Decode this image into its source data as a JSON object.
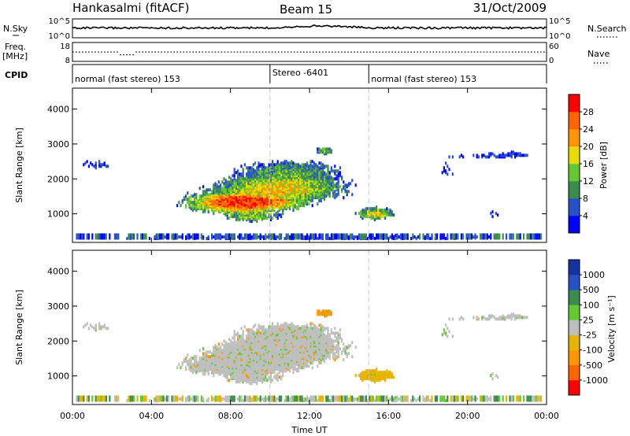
{
  "header": {
    "station": "Hankasalmi (fitACF)",
    "beam": "Beam 15",
    "date": "31/Oct/2009"
  },
  "panel_labels": {
    "nsky": "N.Sky",
    "freq_line1": "Freq.",
    "freq_line2": "[MHz]",
    "cpid": "CPID",
    "nsearch": "N.Search",
    "nave": "Nave"
  },
  "strip_ticks": {
    "nsky_top": "10^5",
    "nsky_bottom": "10^0",
    "nsearch_top": "10^5",
    "nsearch_bottom": "10^0",
    "freq_top": "18",
    "freq_bottom": "8",
    "nave_top": "60",
    "nave_bottom": "0"
  },
  "cpid_segments": [
    {
      "label": "normal (fast stereo) 153",
      "start": 0,
      "end": 10
    },
    {
      "label": "Stereo -6401",
      "start": 10,
      "end": 15
    },
    {
      "label": "normal (fast stereo) 153",
      "start": 15,
      "end": 24
    }
  ],
  "colors": {
    "power": [
      "#0000ff",
      "#2850c8",
      "#3c8c50",
      "#64c832",
      "#e6dc00",
      "#ff9600",
      "#ff6400",
      "#ff0000"
    ],
    "velocity": [
      "#ff0000",
      "#ff6400",
      "#ff9600",
      "#e6b400",
      "#bebebe",
      "#64c832",
      "#3c8c50",
      "#2850c8",
      "#1432a0"
    ]
  },
  "chart_data": [
    {
      "type": "heatmap",
      "panel": "power",
      "xlabel": "",
      "ylabel": "Slant Range [km]",
      "xlim": [
        0,
        24
      ],
      "ylim": [
        180,
        4600
      ],
      "yticks": [
        1000,
        2000,
        3000,
        4000
      ],
      "xticks": [
        "00:00",
        "04:00",
        "08:00",
        "12:00",
        "16:00",
        "20:00",
        "00:00"
      ],
      "colorbar_label": "Power [dB]",
      "colorbar_ticks": [
        "4",
        "8",
        "12",
        "16",
        "20",
        "24",
        "28"
      ],
      "colorbar_range": [
        0,
        30
      ]
    },
    {
      "type": "heatmap",
      "panel": "velocity",
      "xlabel": "Time UT",
      "ylabel": "Slant Range [km]",
      "xlim": [
        0,
        24
      ],
      "ylim": [
        180,
        4600
      ],
      "yticks": [
        1000,
        2000,
        3000,
        4000
      ],
      "xticks": [
        "00:00",
        "04:00",
        "08:00",
        "12:00",
        "16:00",
        "20:00",
        "00:00"
      ],
      "colorbar_label": "Velocity [m s⁻¹]",
      "colorbar_ticks": [
        "1000",
        "500",
        "100",
        "25",
        "-25",
        "-100",
        "-500",
        "-1000"
      ]
    }
  ]
}
